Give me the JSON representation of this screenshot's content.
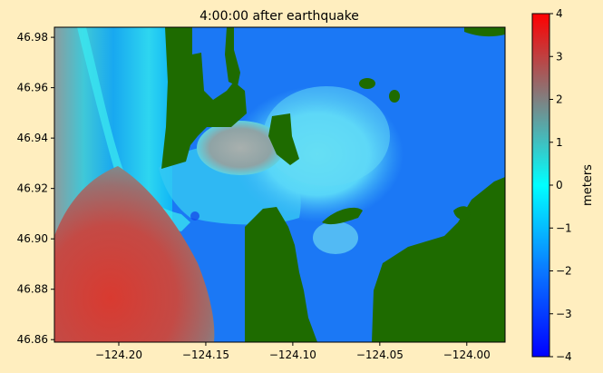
{
  "chart_data": {
    "type": "heatmap",
    "title": "4:00:00 after earthquake",
    "xlabel": "",
    "ylabel": "",
    "xlim": [
      -124.237,
      -123.978
    ],
    "ylim": [
      46.859,
      46.984
    ],
    "xticks": [
      -124.2,
      -124.15,
      -124.1,
      -124.05,
      -124.0
    ],
    "xtick_labels": [
      "−124.20",
      "−124.15",
      "−124.10",
      "−124.05",
      "−124.00"
    ],
    "yticks": [
      46.86,
      46.88,
      46.9,
      46.92,
      46.94,
      46.96,
      46.98
    ],
    "ytick_labels": [
      "46.86",
      "46.88",
      "46.90",
      "46.92",
      "46.94",
      "46.96",
      "46.98"
    ],
    "colorbar": {
      "label": "meters",
      "range": [
        -4,
        4
      ],
      "ticks": [
        -4,
        -3,
        -2,
        -1,
        0,
        1,
        2,
        3,
        4
      ],
      "tick_labels": [
        "−4",
        "−3",
        "−2",
        "−1",
        "0",
        "1",
        "2",
        "3",
        "4"
      ],
      "colors": [
        "#0000ff",
        "#0a78ff",
        "#00ffff",
        "#808080",
        "#ff0000"
      ]
    },
    "colors": {
      "land": "#1e6b00",
      "background": "#ffeebf",
      "deep_water": "#1b78f5"
    },
    "grid": false
  }
}
